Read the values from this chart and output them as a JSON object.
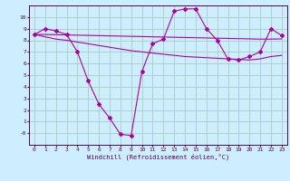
{
  "xlabel": "Windchill (Refroidissement éolien,°C)",
  "background_color": "#cceeff",
  "grid_color": "#aaccbb",
  "line_color": "#aa00aa",
  "x": [
    0,
    1,
    2,
    3,
    4,
    5,
    6,
    7,
    8,
    9,
    10,
    11,
    12,
    13,
    14,
    15,
    16,
    17,
    18,
    19,
    20,
    21,
    22,
    23
  ],
  "y_main": [
    8.5,
    9.0,
    8.8,
    8.5,
    7.0,
    4.5,
    2.5,
    1.3,
    -0.1,
    -0.2,
    5.3,
    7.7,
    8.1,
    10.5,
    10.7,
    10.7,
    9.0,
    8.0,
    6.4,
    6.3,
    6.6,
    7.0,
    9.0,
    8.4
  ],
  "y_line1": [
    8.5,
    8.5,
    8.48,
    8.46,
    8.44,
    8.42,
    8.4,
    8.38,
    8.36,
    8.34,
    8.32,
    8.3,
    8.28,
    8.26,
    8.24,
    8.22,
    8.2,
    8.18,
    8.16,
    8.14,
    8.12,
    8.1,
    8.1,
    8.12
  ],
  "y_line2": [
    8.5,
    8.3,
    8.1,
    8.0,
    7.85,
    7.7,
    7.55,
    7.4,
    7.25,
    7.1,
    7.0,
    6.9,
    6.8,
    6.7,
    6.6,
    6.55,
    6.5,
    6.45,
    6.4,
    6.35,
    6.3,
    6.4,
    6.6,
    6.7
  ],
  "ylim": [
    -1,
    11
  ],
  "xlim": [
    -0.5,
    23.5
  ],
  "yticks": [
    0,
    1,
    2,
    3,
    4,
    5,
    6,
    7,
    8,
    9,
    10
  ],
  "xticks": [
    0,
    1,
    2,
    3,
    4,
    5,
    6,
    7,
    8,
    9,
    10,
    11,
    12,
    13,
    14,
    15,
    16,
    17,
    18,
    19,
    20,
    21,
    22,
    23
  ],
  "ytick_labels": [
    "-0",
    "1",
    "2",
    "3",
    "4",
    "5",
    "6",
    "7",
    "8",
    "9",
    "10"
  ],
  "tick_fontsize": 4.5,
  "label_fontsize": 5.0
}
